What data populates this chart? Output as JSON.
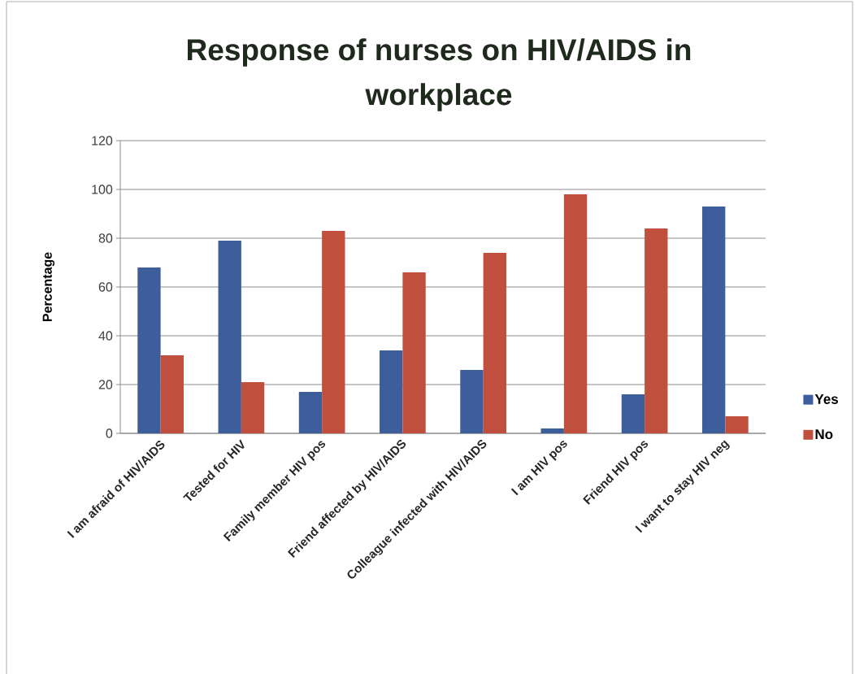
{
  "chart_data": {
    "type": "bar",
    "title": "Response of nurses on HIV/AIDS in workplace",
    "ylabel": "Percentage",
    "categories": [
      "I am afraid of HIV/AIDS",
      "Tested for HIV",
      "Family member HIV pos",
      "Friend affected by HIV/AIDS",
      "Colleague infected with HIV/AIDS",
      "I am HIV pos",
      "Friend HIV pos",
      "I want to stay HIV neg"
    ],
    "series": [
      {
        "name": "Yes",
        "color": "#3d5e9a",
        "values": [
          68,
          79,
          17,
          34,
          26,
          2,
          16,
          93
        ]
      },
      {
        "name": "No",
        "color": "#c0503d",
        "values": [
          32,
          21,
          83,
          66,
          74,
          98,
          84,
          7
        ]
      }
    ],
    "ylim": [
      0,
      120
    ],
    "yticks": [
      0,
      20,
      40,
      60,
      80,
      100,
      120
    ],
    "grid": "y",
    "legend": "right"
  }
}
